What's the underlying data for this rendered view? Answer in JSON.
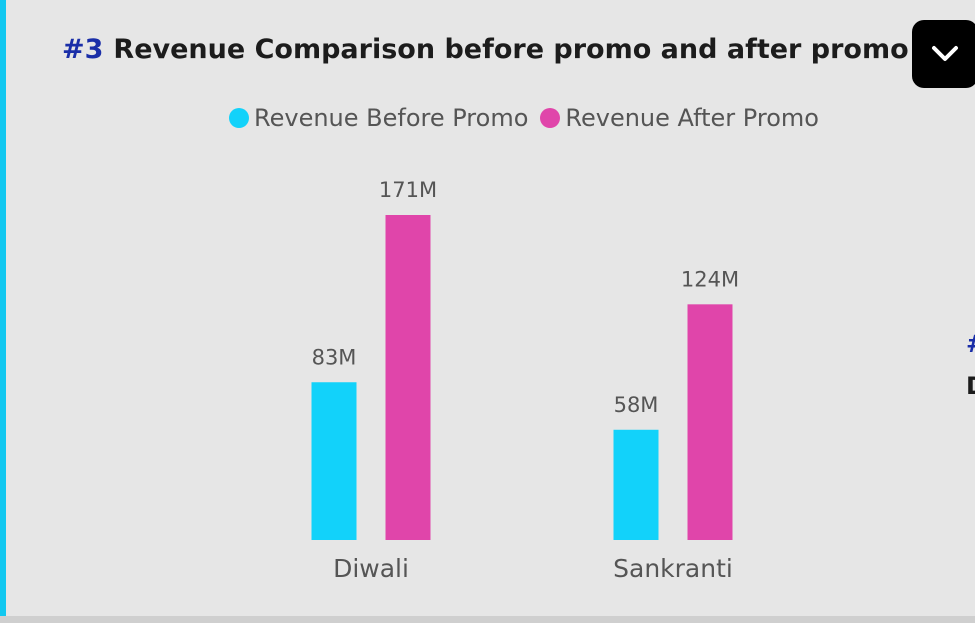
{
  "header": {
    "number": "#3",
    "title": "Revenue Comparison before promo and after promo",
    "dropdown_icon": "chevron-down-icon"
  },
  "colors": {
    "before": "#12d2fa",
    "after": "#e045aa",
    "title_number": "#1a2ea8",
    "accent_bar": "#12c8f0"
  },
  "edge": {
    "fragment_a": "#",
    "fragment_b": "D"
  },
  "chart_data": {
    "type": "bar",
    "title": "Revenue Comparison before promo and after promo",
    "categories": [
      "Diwali",
      "Sankranti"
    ],
    "series": [
      {
        "name": "Revenue Before Promo",
        "values": [
          83,
          58
        ],
        "labels": [
          "83M",
          "58M"
        ]
      },
      {
        "name": "Revenue After Promo",
        "values": [
          171,
          124
        ],
        "labels": [
          "171M",
          "124M"
        ]
      }
    ],
    "unit": "M",
    "ylim": [
      0,
      171
    ],
    "legend_position": "top-center",
    "grid": false,
    "xlabel": "",
    "ylabel": ""
  }
}
